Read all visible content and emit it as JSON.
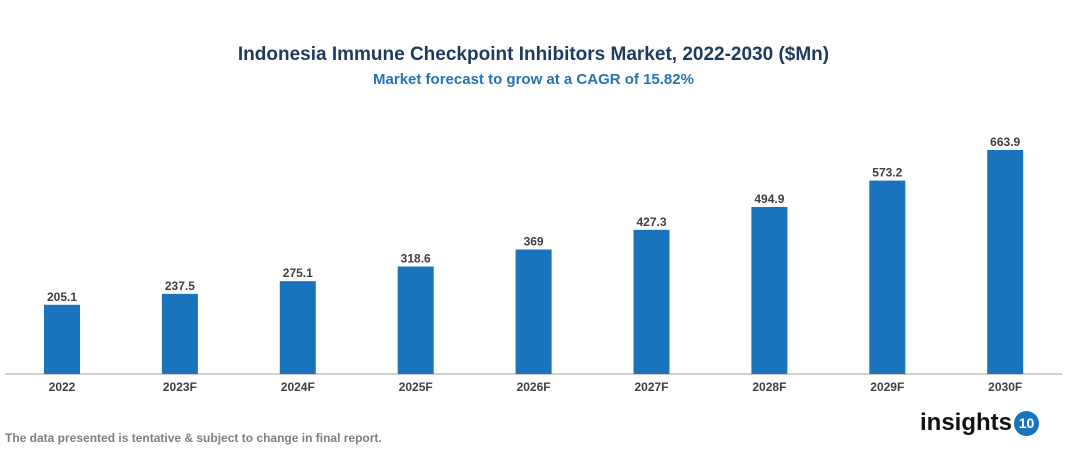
{
  "chart_data": {
    "type": "bar",
    "title": "Indonesia Immune Checkpoint Inhibitors Market, 2022-2030 ($Mn)",
    "subtitle": "Market forecast to grow at a CAGR of 15.82%",
    "categories": [
      "2022",
      "2023F",
      "2024F",
      "2025F",
      "2026F",
      "2027F",
      "2028F",
      "2029F",
      "2030F"
    ],
    "values": [
      205.1,
      237.5,
      275.1,
      318.6,
      369,
      427.3,
      494.9,
      573.2,
      663.9
    ],
    "data_labels": [
      "205.1",
      "237.5",
      "275.1",
      "318.6",
      "369",
      "427.3",
      "494.9",
      "573.2",
      "663.9"
    ],
    "xlabel": "",
    "ylabel": "",
    "ylim": [
      0,
      700
    ],
    "grid": false,
    "bar_color": "#1a73bd",
    "axis_color": "#bfbfbf"
  },
  "footer": {
    "note": "The data presented is tentative & subject to change in final report.",
    "logo_text": "insights",
    "logo_badge": "10"
  }
}
